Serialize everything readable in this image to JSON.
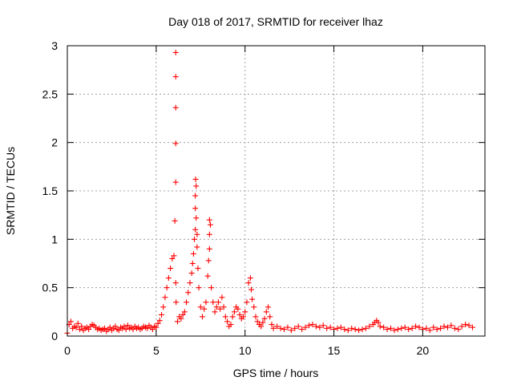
{
  "chart_data": {
    "type": "scatter",
    "title": "Day 018 of 2017, SRMTID for receiver lhaz",
    "xlabel": "GPS time / hours",
    "ylabel": "SRMTID / TECUs",
    "xlim": [
      0,
      23.5
    ],
    "ylim": [
      0,
      3
    ],
    "xticks": [
      0,
      5,
      10,
      15,
      20
    ],
    "xtick_labels": [
      "0",
      "5",
      "10",
      "15",
      "20"
    ],
    "yticks": [
      0,
      0.5,
      1,
      1.5,
      2,
      2.5,
      3
    ],
    "ytick_labels": [
      "0",
      "0.5",
      "1",
      "1.5",
      "2",
      "2.5",
      "3"
    ],
    "grid": true,
    "marker": "+",
    "series": [
      {
        "name": "SRMTID",
        "color": "#ff0000",
        "x": [
          0.0,
          0.1,
          0.2,
          0.3,
          0.4,
          0.5,
          0.6,
          0.7,
          0.8,
          0.9,
          1.0,
          1.1,
          1.2,
          1.3,
          1.4,
          1.5,
          1.6,
          1.7,
          1.8,
          1.9,
          2.0,
          2.1,
          2.2,
          2.3,
          2.4,
          2.5,
          2.6,
          2.7,
          2.8,
          2.9,
          3.0,
          3.1,
          3.2,
          3.3,
          3.4,
          3.5,
          3.6,
          3.7,
          3.8,
          3.9,
          4.0,
          4.1,
          4.2,
          4.3,
          4.4,
          4.5,
          4.6,
          4.7,
          4.8,
          4.9,
          5.0,
          5.1,
          5.2,
          5.3,
          5.4,
          5.5,
          5.6,
          5.7,
          5.8,
          5.9,
          6.0,
          6.05,
          6.1,
          6.1,
          6.1,
          6.1,
          6.1,
          6.1,
          6.12,
          6.2,
          6.3,
          6.4,
          6.5,
          6.6,
          6.7,
          6.8,
          6.9,
          7.0,
          7.05,
          7.1,
          7.15,
          7.2,
          7.2,
          7.2,
          7.22,
          7.25,
          7.25,
          7.3,
          7.3,
          7.35,
          7.4,
          7.5,
          7.6,
          7.7,
          7.8,
          7.9,
          7.95,
          8.0,
          8.0,
          8.0,
          8.05,
          8.1,
          8.2,
          8.3,
          8.4,
          8.5,
          8.6,
          8.7,
          8.8,
          8.9,
          9.0,
          9.1,
          9.2,
          9.3,
          9.4,
          9.5,
          9.6,
          9.7,
          9.8,
          9.9,
          10.0,
          10.1,
          10.2,
          10.3,
          10.35,
          10.4,
          10.5,
          10.6,
          10.7,
          10.8,
          10.9,
          11.0,
          11.1,
          11.2,
          11.3,
          11.4,
          11.5,
          11.6,
          11.8,
          12.0,
          12.2,
          12.4,
          12.6,
          12.8,
          13.0,
          13.2,
          13.4,
          13.6,
          13.8,
          14.0,
          14.2,
          14.4,
          14.6,
          14.8,
          15.0,
          15.2,
          15.4,
          15.6,
          15.8,
          16.0,
          16.2,
          16.4,
          16.6,
          16.8,
          17.0,
          17.2,
          17.3,
          17.4,
          17.5,
          17.6,
          17.8,
          18.0,
          18.2,
          18.4,
          18.6,
          18.8,
          19.0,
          19.2,
          19.4,
          19.6,
          19.8,
          20.0,
          20.2,
          20.4,
          20.6,
          20.8,
          21.0,
          21.2,
          21.4,
          21.6,
          21.8,
          22.0,
          22.2,
          22.4,
          22.6,
          22.8
        ],
        "y": [
          0.03,
          0.12,
          0.15,
          0.08,
          0.1,
          0.09,
          0.13,
          0.07,
          0.1,
          0.06,
          0.08,
          0.09,
          0.07,
          0.1,
          0.12,
          0.11,
          0.09,
          0.07,
          0.08,
          0.06,
          0.07,
          0.08,
          0.05,
          0.07,
          0.09,
          0.06,
          0.08,
          0.1,
          0.07,
          0.06,
          0.09,
          0.08,
          0.1,
          0.07,
          0.11,
          0.08,
          0.09,
          0.07,
          0.1,
          0.08,
          0.09,
          0.07,
          0.08,
          0.1,
          0.09,
          0.08,
          0.11,
          0.09,
          0.07,
          0.1,
          0.09,
          0.13,
          0.16,
          0.22,
          0.3,
          0.4,
          0.5,
          0.6,
          0.7,
          0.8,
          0.83,
          1.19,
          1.59,
          1.99,
          2.36,
          2.68,
          2.93,
          0.55,
          0.35,
          0.15,
          0.2,
          0.18,
          0.22,
          0.25,
          0.35,
          0.45,
          0.55,
          0.65,
          0.75,
          0.85,
          1.0,
          1.1,
          1.32,
          1.45,
          1.62,
          1.55,
          1.22,
          1.05,
          0.92,
          0.7,
          0.5,
          0.3,
          0.2,
          0.28,
          0.35,
          0.62,
          0.78,
          0.9,
          1.05,
          1.2,
          1.15,
          0.5,
          0.35,
          0.25,
          0.3,
          0.35,
          0.28,
          0.4,
          0.3,
          0.2,
          0.15,
          0.1,
          0.12,
          0.2,
          0.25,
          0.3,
          0.28,
          0.22,
          0.18,
          0.2,
          0.25,
          0.35,
          0.55,
          0.6,
          0.48,
          0.38,
          0.3,
          0.2,
          0.15,
          0.12,
          0.1,
          0.14,
          0.18,
          0.25,
          0.3,
          0.2,
          0.12,
          0.08,
          0.1,
          0.08,
          0.07,
          0.09,
          0.06,
          0.08,
          0.1,
          0.07,
          0.09,
          0.11,
          0.12,
          0.1,
          0.09,
          0.11,
          0.08,
          0.09,
          0.07,
          0.08,
          0.09,
          0.07,
          0.06,
          0.08,
          0.07,
          0.06,
          0.07,
          0.08,
          0.1,
          0.12,
          0.14,
          0.16,
          0.14,
          0.1,
          0.09,
          0.07,
          0.08,
          0.06,
          0.07,
          0.08,
          0.09,
          0.07,
          0.08,
          0.1,
          0.09,
          0.07,
          0.08,
          0.06,
          0.09,
          0.07,
          0.08,
          0.1,
          0.09,
          0.11,
          0.08,
          0.07,
          0.1,
          0.12,
          0.11,
          0.09
        ]
      }
    ]
  }
}
